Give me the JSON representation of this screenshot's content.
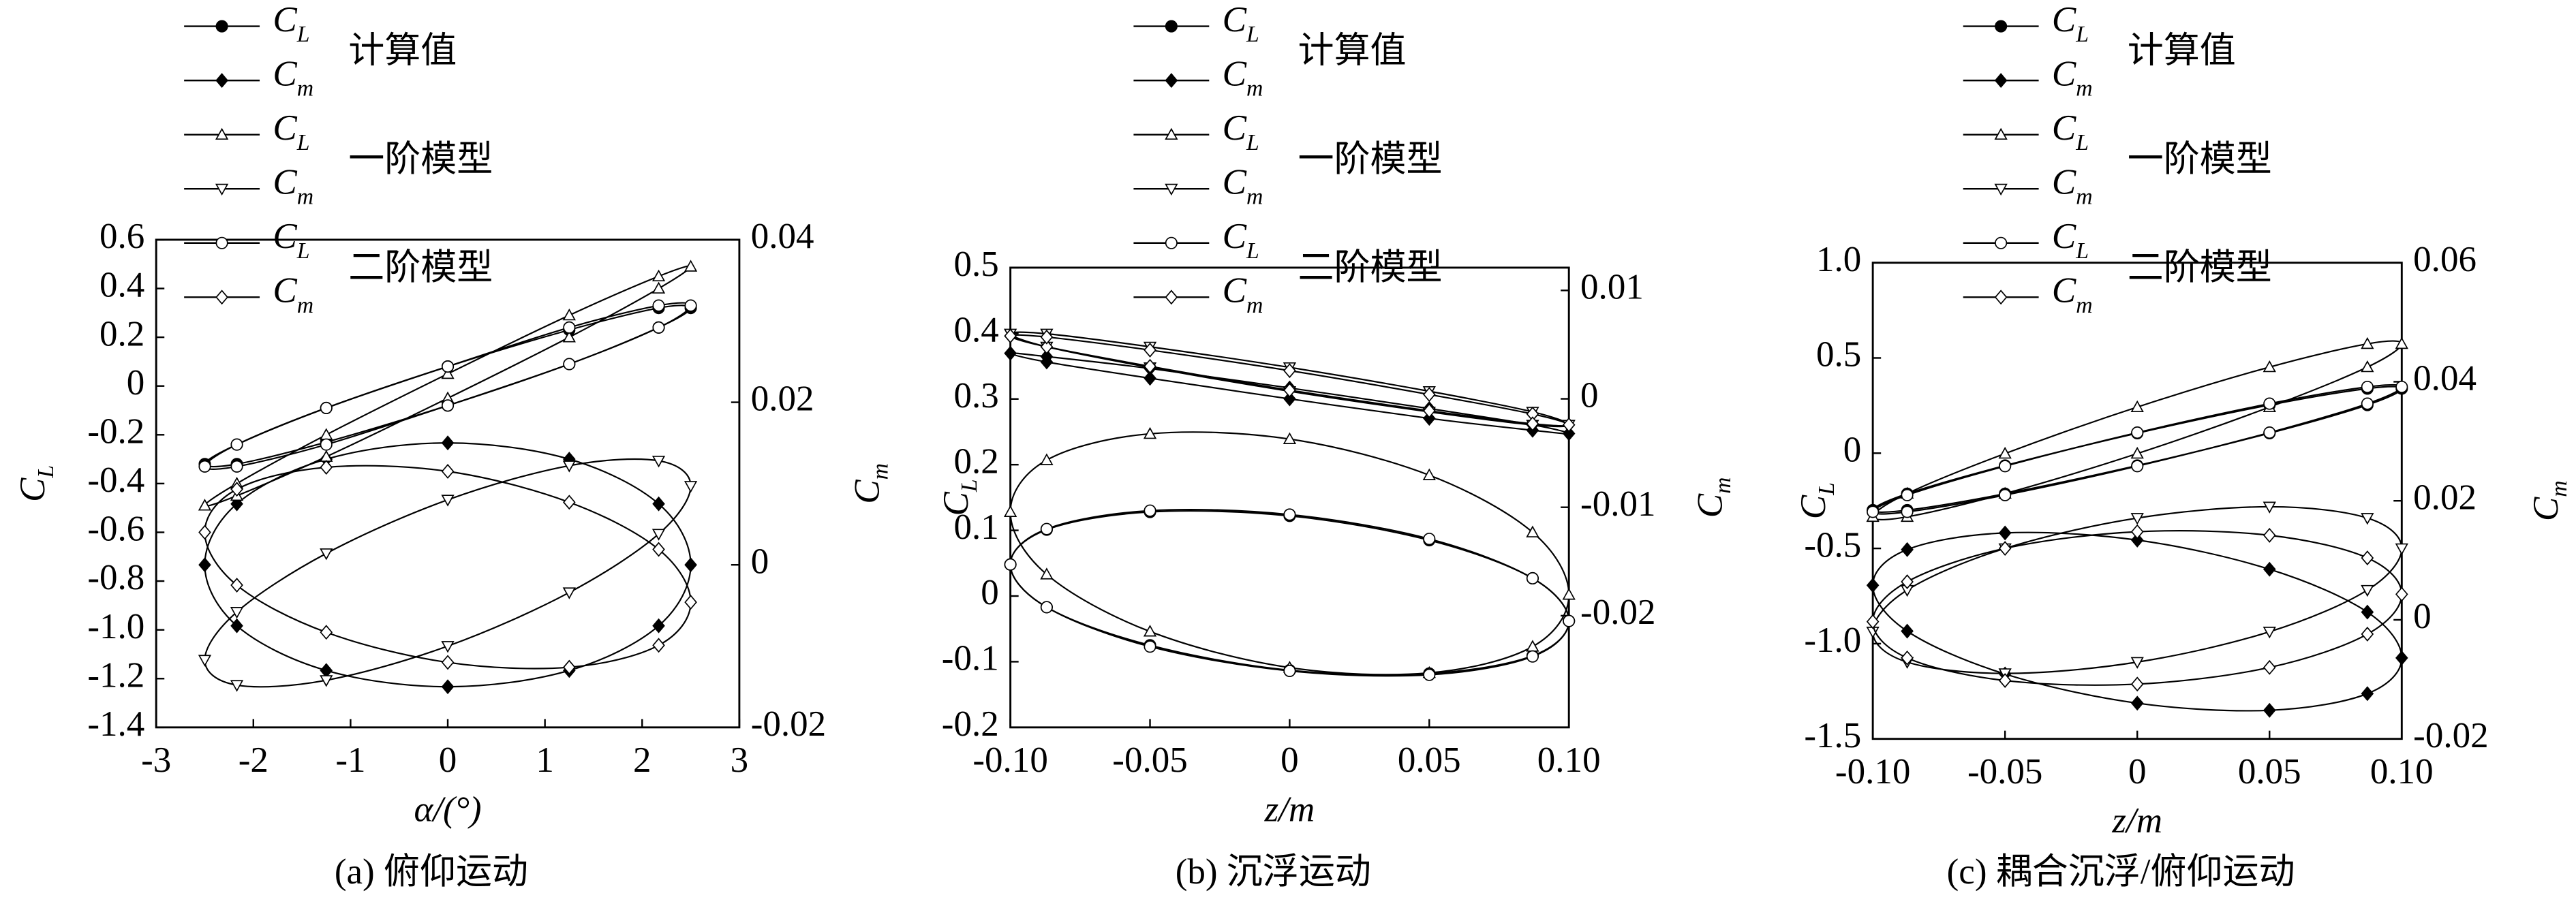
{
  "chart_data": [
    {
      "type": "line",
      "caption": "(a) 俯仰运动",
      "x_label": "α/(°)",
      "y_label": {
        "symbol": "C",
        "subscript": "L"
      },
      "y2_label": {
        "symbol": "C",
        "subscript": "m"
      },
      "legend_groups": [
        "计算值",
        "一阶模型",
        "二阶模型"
      ],
      "xlim": [
        -3,
        3
      ],
      "xticks": [
        -3,
        -2,
        -1,
        0,
        1,
        2,
        3
      ],
      "ylim": [
        -1.4,
        0.6
      ],
      "yticks": [
        {
          "value": -1.4,
          "label": "-1.4"
        },
        {
          "value": -1.2,
          "label": "-1.2"
        },
        {
          "value": -1.0,
          "label": "-1.0"
        },
        {
          "value": -0.8,
          "label": "-0.8"
        },
        {
          "value": -0.6,
          "label": "-0.6"
        },
        {
          "value": -0.4,
          "label": "-0.4"
        },
        {
          "value": -0.2,
          "label": "-0.2"
        },
        0,
        0.2,
        0.4,
        0.6
      ],
      "y2lim": [
        -0.02,
        0.04
      ],
      "y2ticks": [
        {
          "value": -0.02,
          "label": "-0.02"
        },
        0,
        0.02,
        0.04
      ],
      "series": [
        {
          "symbol": "C",
          "subscript": "L",
          "marker": "circle",
          "filled": true,
          "color": "#000000",
          "axis": "y",
          "x": [
            0,
            1.25,
            2.17,
            2.5,
            2.17,
            1.25,
            0,
            -1.25,
            -2.17,
            -2.5,
            -2.17,
            -1.25
          ],
          "values": [
            0.08,
            0.23,
            0.32,
            0.32,
            0.24,
            0.09,
            -0.08,
            -0.23,
            -0.32,
            -0.32,
            -0.24,
            -0.09
          ]
        },
        {
          "symbol": "C",
          "subscript": "m",
          "marker": "diamond",
          "filled": true,
          "color": "#000000",
          "axis": "y2",
          "x": [
            0,
            1.25,
            2.17,
            2.5,
            2.17,
            1.25,
            0,
            -1.25,
            -2.17,
            -2.5,
            -2.17,
            -1.25
          ],
          "values": [
            0.015,
            0.013,
            0.0075,
            0,
            -0.0075,
            -0.013,
            -0.015,
            -0.013,
            -0.0075,
            0,
            0.0075,
            0.013
          ]
        },
        {
          "symbol": "C",
          "subscript": "L",
          "marker": "triangle-up",
          "filled": false,
          "color": "#000000",
          "axis": "y",
          "x": [
            0,
            1.25,
            2.17,
            2.5,
            2.17,
            1.25,
            0,
            -1.25,
            -2.17,
            -2.5,
            -2.17,
            -1.25
          ],
          "values": [
            0.05,
            0.29,
            0.45,
            0.49,
            0.4,
            0.2,
            -0.05,
            -0.29,
            -0.45,
            -0.49,
            -0.4,
            -0.2
          ]
        },
        {
          "symbol": "C",
          "subscript": "m",
          "marker": "triangle-down",
          "filled": false,
          "color": "#000000",
          "axis": "y2",
          "x": [
            0,
            1.25,
            2.17,
            2.5,
            2.17,
            1.25,
            0,
            -1.25,
            -2.17,
            -2.5,
            -2.17,
            -1.25
          ],
          "values": [
            0.008,
            0.0122,
            0.0128,
            0.0097,
            0.0038,
            -0.0034,
            -0.01,
            -0.0142,
            -0.0148,
            -0.0117,
            -0.0058,
            0.0014
          ]
        },
        {
          "symbol": "C",
          "subscript": "L",
          "marker": "circle",
          "filled": false,
          "color": "#000000",
          "axis": "y",
          "x": [
            0,
            1.25,
            2.17,
            2.5,
            2.17,
            1.25,
            0,
            -1.25,
            -2.17,
            -2.5,
            -2.17,
            -1.25
          ],
          "values": [
            0.08,
            0.24,
            0.33,
            0.33,
            0.24,
            0.09,
            -0.08,
            -0.24,
            -0.33,
            -0.33,
            -0.24,
            -0.09
          ]
        },
        {
          "symbol": "C",
          "subscript": "m",
          "marker": "diamond",
          "filled": false,
          "color": "#000000",
          "axis": "y2",
          "x": [
            0,
            1.25,
            2.17,
            2.5,
            2.17,
            1.25,
            0,
            -1.25,
            -2.17,
            -2.5,
            -2.17,
            -1.25
          ],
          "values": [
            0.0115,
            0.0077,
            0.0019,
            -0.0046,
            -0.0099,
            -0.0126,
            -0.012,
            -0.0083,
            -0.0025,
            0.004,
            0.0093,
            0.012
          ]
        }
      ]
    },
    {
      "type": "line",
      "caption": "(b) 沉浮运动",
      "x_label": "z/m",
      "y_label": {
        "symbol": "C",
        "subscript": "L"
      },
      "y2_label": {
        "symbol": "C",
        "subscript": "m"
      },
      "legend_groups": [
        "计算值",
        "一阶模型",
        "二阶模型"
      ],
      "xlim": [
        -0.1,
        0.1
      ],
      "xticks": [
        {
          "value": -0.1,
          "label": "-0.10"
        },
        -0.05,
        0,
        0.05,
        {
          "value": 0.1,
          "label": "0.10"
        }
      ],
      "ylim": [
        -0.2,
        0.5
      ],
      "yticks": [
        -0.2,
        -0.1,
        0,
        0.1,
        0.2,
        0.3,
        0.4,
        0.5
      ],
      "y2lim": [
        -0.0303,
        0.0121
      ],
      "y2ticks": [
        -0.02,
        -0.01,
        0,
        0.01
      ],
      "series": [
        {
          "symbol": "C",
          "subscript": "L",
          "marker": "circle",
          "filled": true,
          "color": "#000000",
          "axis": "y",
          "x": [
            0,
            0.05,
            0.087,
            0.1,
            0.087,
            0.05,
            0,
            -0.05,
            -0.087,
            -0.1,
            -0.087,
            -0.05
          ],
          "values": [
            0.122,
            0.085,
            0.027,
            -0.038,
            -0.091,
            -0.118,
            -0.113,
            -0.075,
            -0.017,
            0.048,
            0.101,
            0.128
          ]
        },
        {
          "symbol": "C",
          "subscript": "m",
          "marker": "diamond",
          "filled": true,
          "color": "#000000",
          "axis": "y2",
          "x": [
            0,
            0.05,
            0.087,
            0.1,
            0.087,
            0.05,
            0,
            -0.05,
            -0.087,
            -0.1,
            -0.087,
            -0.05
          ],
          "values": [
            0,
            -0.0018,
            -0.0029,
            -0.0032,
            -0.0024,
            -0.0009,
            0.001,
            0.0028,
            0.0039,
            0.0042,
            0.0034,
            0.0019
          ]
        },
        {
          "symbol": "C",
          "subscript": "L",
          "marker": "triangle-up",
          "filled": false,
          "color": "#000000",
          "axis": "y",
          "x": [
            0,
            0.05,
            0.087,
            0.1,
            0.087,
            0.05,
            0,
            -0.05,
            -0.087,
            -0.1,
            -0.087,
            -0.05
          ],
          "values": [
            0.239,
            0.184,
            0.097,
            0.002,
            -0.077,
            -0.117,
            -0.109,
            -0.054,
            0.033,
            0.128,
            0.207,
            0.247
          ]
        },
        {
          "symbol": "C",
          "subscript": "m",
          "marker": "triangle-down",
          "filled": false,
          "color": "#000000",
          "axis": "y2",
          "x": [
            0,
            0.05,
            0.087,
            0.1,
            0.087,
            0.05,
            0,
            -0.05,
            -0.087,
            -0.1,
            -0.087,
            -0.05
          ],
          "values": [
            0.0029,
            0.0007,
            -0.0012,
            -0.0024,
            -0.0024,
            -0.0012,
            0.0007,
            0.0029,
            0.0048,
            0.006,
            0.006,
            0.0048
          ]
        },
        {
          "symbol": "C",
          "subscript": "L",
          "marker": "circle",
          "filled": false,
          "color": "#000000",
          "axis": "y",
          "x": [
            0,
            0.05,
            0.087,
            0.1,
            0.087,
            0.05,
            0,
            -0.05,
            -0.087,
            -0.1,
            -0.087,
            -0.05
          ],
          "values": [
            0.124,
            0.087,
            0.027,
            -0.038,
            -0.092,
            -0.12,
            -0.114,
            -0.077,
            -0.017,
            0.048,
            0.102,
            0.13
          ]
        },
        {
          "symbol": "C",
          "subscript": "m",
          "marker": "diamond",
          "filled": false,
          "color": "#000000",
          "axis": "y2",
          "x": [
            0,
            0.05,
            0.087,
            0.1,
            0.087,
            0.05,
            0,
            -0.05,
            -0.087,
            -0.1,
            -0.087,
            -0.05
          ],
          "values": [
            0.0026,
            0.0004,
            -0.0014,
            -0.0024,
            -0.0023,
            -0.0011,
            0.0008,
            0.003,
            0.0048,
            0.0058,
            0.0057,
            0.0045
          ]
        }
      ]
    },
    {
      "type": "line",
      "caption": "(c) 耦合沉浮/俯仰运动",
      "x_label": "z/m",
      "y_label": {
        "symbol": "C",
        "subscript": "L"
      },
      "y2_label": {
        "symbol": "C",
        "subscript": "m"
      },
      "legend_groups": [
        "计算值",
        "一阶模型",
        "二阶模型"
      ],
      "xlim": [
        -0.1,
        0.1
      ],
      "xticks": [
        {
          "value": -0.1,
          "label": "-0.10"
        },
        -0.05,
        0,
        0.05,
        {
          "value": 0.1,
          "label": "0.10"
        }
      ],
      "ylim": [
        -1.5,
        1.0
      ],
      "yticks": [
        -1.5,
        {
          "value": -1.0,
          "label": "-1.0"
        },
        -0.5,
        0,
        0.5,
        {
          "value": 1.0,
          "label": "1.0"
        }
      ],
      "y2lim": [
        -0.02,
        0.06
      ],
      "y2ticks": [
        -0.02,
        0,
        0.02,
        0.04,
        0.06
      ],
      "series": [
        {
          "symbol": "C",
          "subscript": "L",
          "marker": "circle",
          "filled": true,
          "color": "#000000",
          "axis": "y",
          "x": [
            0,
            0.05,
            0.087,
            0.1,
            0.087,
            0.05,
            0,
            -0.05,
            -0.087,
            -0.1,
            -0.087,
            -0.05
          ],
          "values": [
            0.105,
            0.253,
            0.339,
            0.339,
            0.253,
            0.105,
            -0.065,
            -0.213,
            -0.299,
            -0.299,
            -0.213,
            -0.065
          ]
        },
        {
          "symbol": "C",
          "subscript": "m",
          "marker": "diamond",
          "filled": true,
          "color": "#000000",
          "axis": "y2",
          "x": [
            0,
            0.05,
            0.087,
            0.1,
            0.087,
            0.05,
            0,
            -0.05,
            -0.087,
            -0.1,
            -0.087,
            -0.05
          ],
          "values": [
            0.0134,
            0.0085,
            0.0013,
            -0.0064,
            -0.0124,
            -0.0152,
            -0.014,
            -0.0091,
            -0.0019,
            0.0058,
            0.0118,
            0.0146
          ]
        },
        {
          "symbol": "C",
          "subscript": "L",
          "marker": "triangle-up",
          "filled": false,
          "color": "#000000",
          "axis": "y",
          "x": [
            0,
            0.05,
            0.087,
            0.1,
            0.087,
            0.05,
            0,
            -0.05,
            -0.087,
            -0.1,
            -0.087,
            -0.05
          ],
          "values": [
            0.242,
            0.452,
            0.574,
            0.574,
            0.452,
            0.242,
            -0.002,
            -0.212,
            -0.334,
            -0.334,
            -0.212,
            -0.002
          ]
        },
        {
          "symbol": "C",
          "subscript": "m",
          "marker": "triangle-down",
          "filled": false,
          "color": "#000000",
          "axis": "y2",
          "x": [
            0,
            0.05,
            0.087,
            0.1,
            0.087,
            0.05,
            0,
            -0.05,
            -0.087,
            -0.1,
            -0.087,
            -0.05
          ],
          "values": [
            0.0171,
            0.019,
            0.0171,
            0.012,
            0.005,
            -0.002,
            -0.0071,
            -0.009,
            -0.0071,
            -0.002,
            0.005,
            0.012
          ]
        },
        {
          "symbol": "C",
          "subscript": "L",
          "marker": "circle",
          "filled": false,
          "color": "#000000",
          "axis": "y",
          "x": [
            0,
            0.05,
            0.087,
            0.1,
            0.087,
            0.05,
            0,
            -0.05,
            -0.087,
            -0.1,
            -0.087,
            -0.05
          ],
          "values": [
            0.108,
            0.26,
            0.348,
            0.348,
            0.26,
            0.108,
            -0.068,
            -0.22,
            -0.308,
            -0.308,
            -0.22,
            -0.068
          ]
        },
        {
          "symbol": "C",
          "subscript": "m",
          "marker": "diamond",
          "filled": false,
          "color": "#000000",
          "axis": "y2",
          "x": [
            0,
            0.05,
            0.087,
            0.1,
            0.087,
            0.05,
            0,
            -0.05,
            -0.087,
            -0.1,
            -0.087,
            -0.05
          ],
          "values": [
            0.0148,
            0.0142,
            0.0104,
            0.0043,
            -0.0024,
            -0.008,
            -0.0108,
            -0.0102,
            -0.0064,
            -0.0003,
            0.0064,
            0.012
          ]
        }
      ]
    }
  ]
}
